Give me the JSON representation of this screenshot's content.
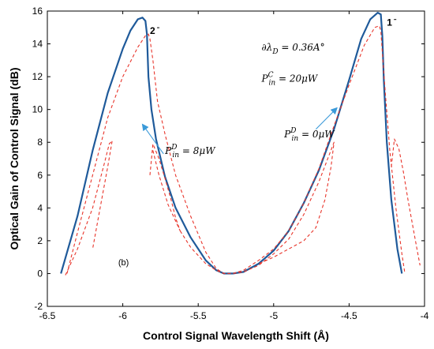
{
  "chart_data": {
    "type": "line",
    "xlabel": "Control Signal Wavelength Shift (Å)",
    "ylabel": "Optical Gain of Control Signal (dB)",
    "xlim": [
      -6.5,
      -4
    ],
    "ylim": [
      -2,
      16
    ],
    "x_ticks": [
      "-6.5",
      "-6",
      "-5.5",
      "-5",
      "-4.5",
      "-4"
    ],
    "y_ticks": [
      "-2",
      "0",
      "2",
      "4",
      "6",
      "8",
      "10",
      "12",
      "14",
      "16"
    ],
    "grid": false,
    "colors": {
      "solid": "#1f5a9a",
      "dashed": "#e8342a",
      "arrow": "#3b9ad9"
    },
    "series": [
      {
        "style": "solid",
        "x": [
          -6.41,
          -6.3,
          -6.2,
          -6.1,
          -6.0,
          -5.95,
          -5.9,
          -5.87,
          -5.85,
          -5.84,
          -5.83,
          -5.81,
          -5.78,
          -5.72,
          -5.65,
          -5.55,
          -5.45,
          -5.38,
          -5.33,
          -5.27,
          -5.2,
          -5.1,
          -5.0,
          -4.9,
          -4.8,
          -4.7,
          -4.6,
          -4.5,
          -4.42,
          -4.36,
          -4.31,
          -4.29,
          -4.28,
          -4.27,
          -4.25,
          -4.22,
          -4.18,
          -4.15
        ],
        "y": [
          0.0,
          3.5,
          7.5,
          11.0,
          13.7,
          14.8,
          15.5,
          15.6,
          15.4,
          14.6,
          12.0,
          10.0,
          8.2,
          5.9,
          4.0,
          2.2,
          0.8,
          0.2,
          0.0,
          0.0,
          0.1,
          0.6,
          1.4,
          2.6,
          4.3,
          6.3,
          8.8,
          11.8,
          14.3,
          15.5,
          15.9,
          15.8,
          14.5,
          11.8,
          8.0,
          4.5,
          1.5,
          0.0
        ]
      },
      {
        "style": "dashed",
        "x": [
          -6.37,
          -6.3,
          -6.2,
          -6.1,
          -6.0,
          -5.9,
          -5.85,
          -5.83,
          -5.82,
          -5.8,
          -5.77,
          -5.72,
          -5.65,
          -5.55,
          -5.45,
          -5.38,
          -5.33,
          -5.27,
          -5.2,
          -5.1,
          -5.0,
          -4.9,
          -4.8,
          -4.7,
          -4.6,
          -4.5,
          -4.4,
          -4.33,
          -4.3,
          -4.29,
          -4.28,
          -4.26,
          -4.23,
          -4.19,
          -4.15,
          -4.13
        ],
        "y": [
          0.0,
          2.5,
          6.0,
          9.5,
          12.0,
          13.8,
          14.5,
          14.6,
          14.3,
          13.0,
          10.5,
          8.5,
          6.0,
          3.5,
          1.3,
          0.3,
          0.0,
          0.0,
          0.2,
          0.8,
          1.5,
          2.6,
          4.3,
          6.4,
          9.0,
          11.5,
          13.9,
          15.0,
          15.1,
          14.8,
          13.5,
          11.0,
          7.5,
          4.0,
          1.2,
          0.0
        ]
      },
      {
        "style": "dashed",
        "x": [
          -6.38,
          -6.3,
          -6.2,
          -6.12,
          -6.09,
          -6.07,
          -6.1,
          -6.15,
          -6.2
        ],
        "y": [
          -0.1,
          1.5,
          4.0,
          6.8,
          7.9,
          8.1,
          6.5,
          4.0,
          1.5
        ]
      },
      {
        "style": "dashed",
        "x": [
          -5.82,
          -5.8,
          -5.76,
          -5.72,
          -5.68,
          -5.65,
          -5.62,
          -5.7,
          -5.76,
          -5.8
        ],
        "y": [
          6.0,
          7.9,
          7.0,
          5.8,
          4.5,
          3.4,
          2.6,
          4.2,
          6.0,
          7.5
        ]
      },
      {
        "style": "dashed",
        "x": [
          -5.62,
          -5.55,
          -5.45,
          -5.38,
          -5.33,
          -5.27,
          -5.2,
          -5.1,
          -5.0,
          -4.9,
          -4.8,
          -4.7,
          -4.65,
          -4.6,
          -4.62,
          -4.66,
          -4.72,
          -4.8,
          -4.9,
          -5.0,
          -5.1
        ],
        "y": [
          2.6,
          1.6,
          0.6,
          0.2,
          0.0,
          0.0,
          0.1,
          0.5,
          1.2,
          2.1,
          3.6,
          5.6,
          6.8,
          8.0,
          6.5,
          4.5,
          2.8,
          2.0,
          1.5,
          1.0,
          0.6
        ]
      },
      {
        "style": "dashed",
        "x": [
          -4.22,
          -4.2,
          -4.17,
          -4.14,
          -4.11,
          -4.08,
          -4.05,
          -4.03
        ],
        "y": [
          6.5,
          8.2,
          7.6,
          6.2,
          4.5,
          3.0,
          1.5,
          0.5
        ]
      }
    ],
    "annotations": [
      {
        "text_main": "∂λ",
        "text_sub": "D",
        "text_rest": " = 0.36A°",
        "x": -5.08,
        "y": 13.6
      },
      {
        "text_main": "P",
        "text_sub": "in",
        "text_sup": "C",
        "text_rest": " = 20μW",
        "x": -5.08,
        "y": 11.7
      },
      {
        "text_main": "P",
        "text_sub": "in",
        "text_sup": "D",
        "text_rest": " = 8μW",
        "x": -5.72,
        "y": 7.3
      },
      {
        "text_main": "P",
        "text_sub": "in",
        "text_sup": "D",
        "text_rest": " = 0μW",
        "x": -4.93,
        "y": 8.3
      }
    ],
    "arrows": [
      {
        "from": [
          -5.73,
          7.3
        ],
        "to": [
          -5.87,
          9.1
        ]
      },
      {
        "from": [
          -4.72,
          8.8
        ],
        "to": [
          -4.58,
          10.1
        ]
      }
    ],
    "labels": [
      {
        "text": "2",
        "x": -5.82,
        "y": 14.6
      },
      {
        "text": "1",
        "x": -4.25,
        "y": 15.1
      },
      {
        "text": "(b)",
        "x": -6.03,
        "y": 0.5
      }
    ]
  }
}
